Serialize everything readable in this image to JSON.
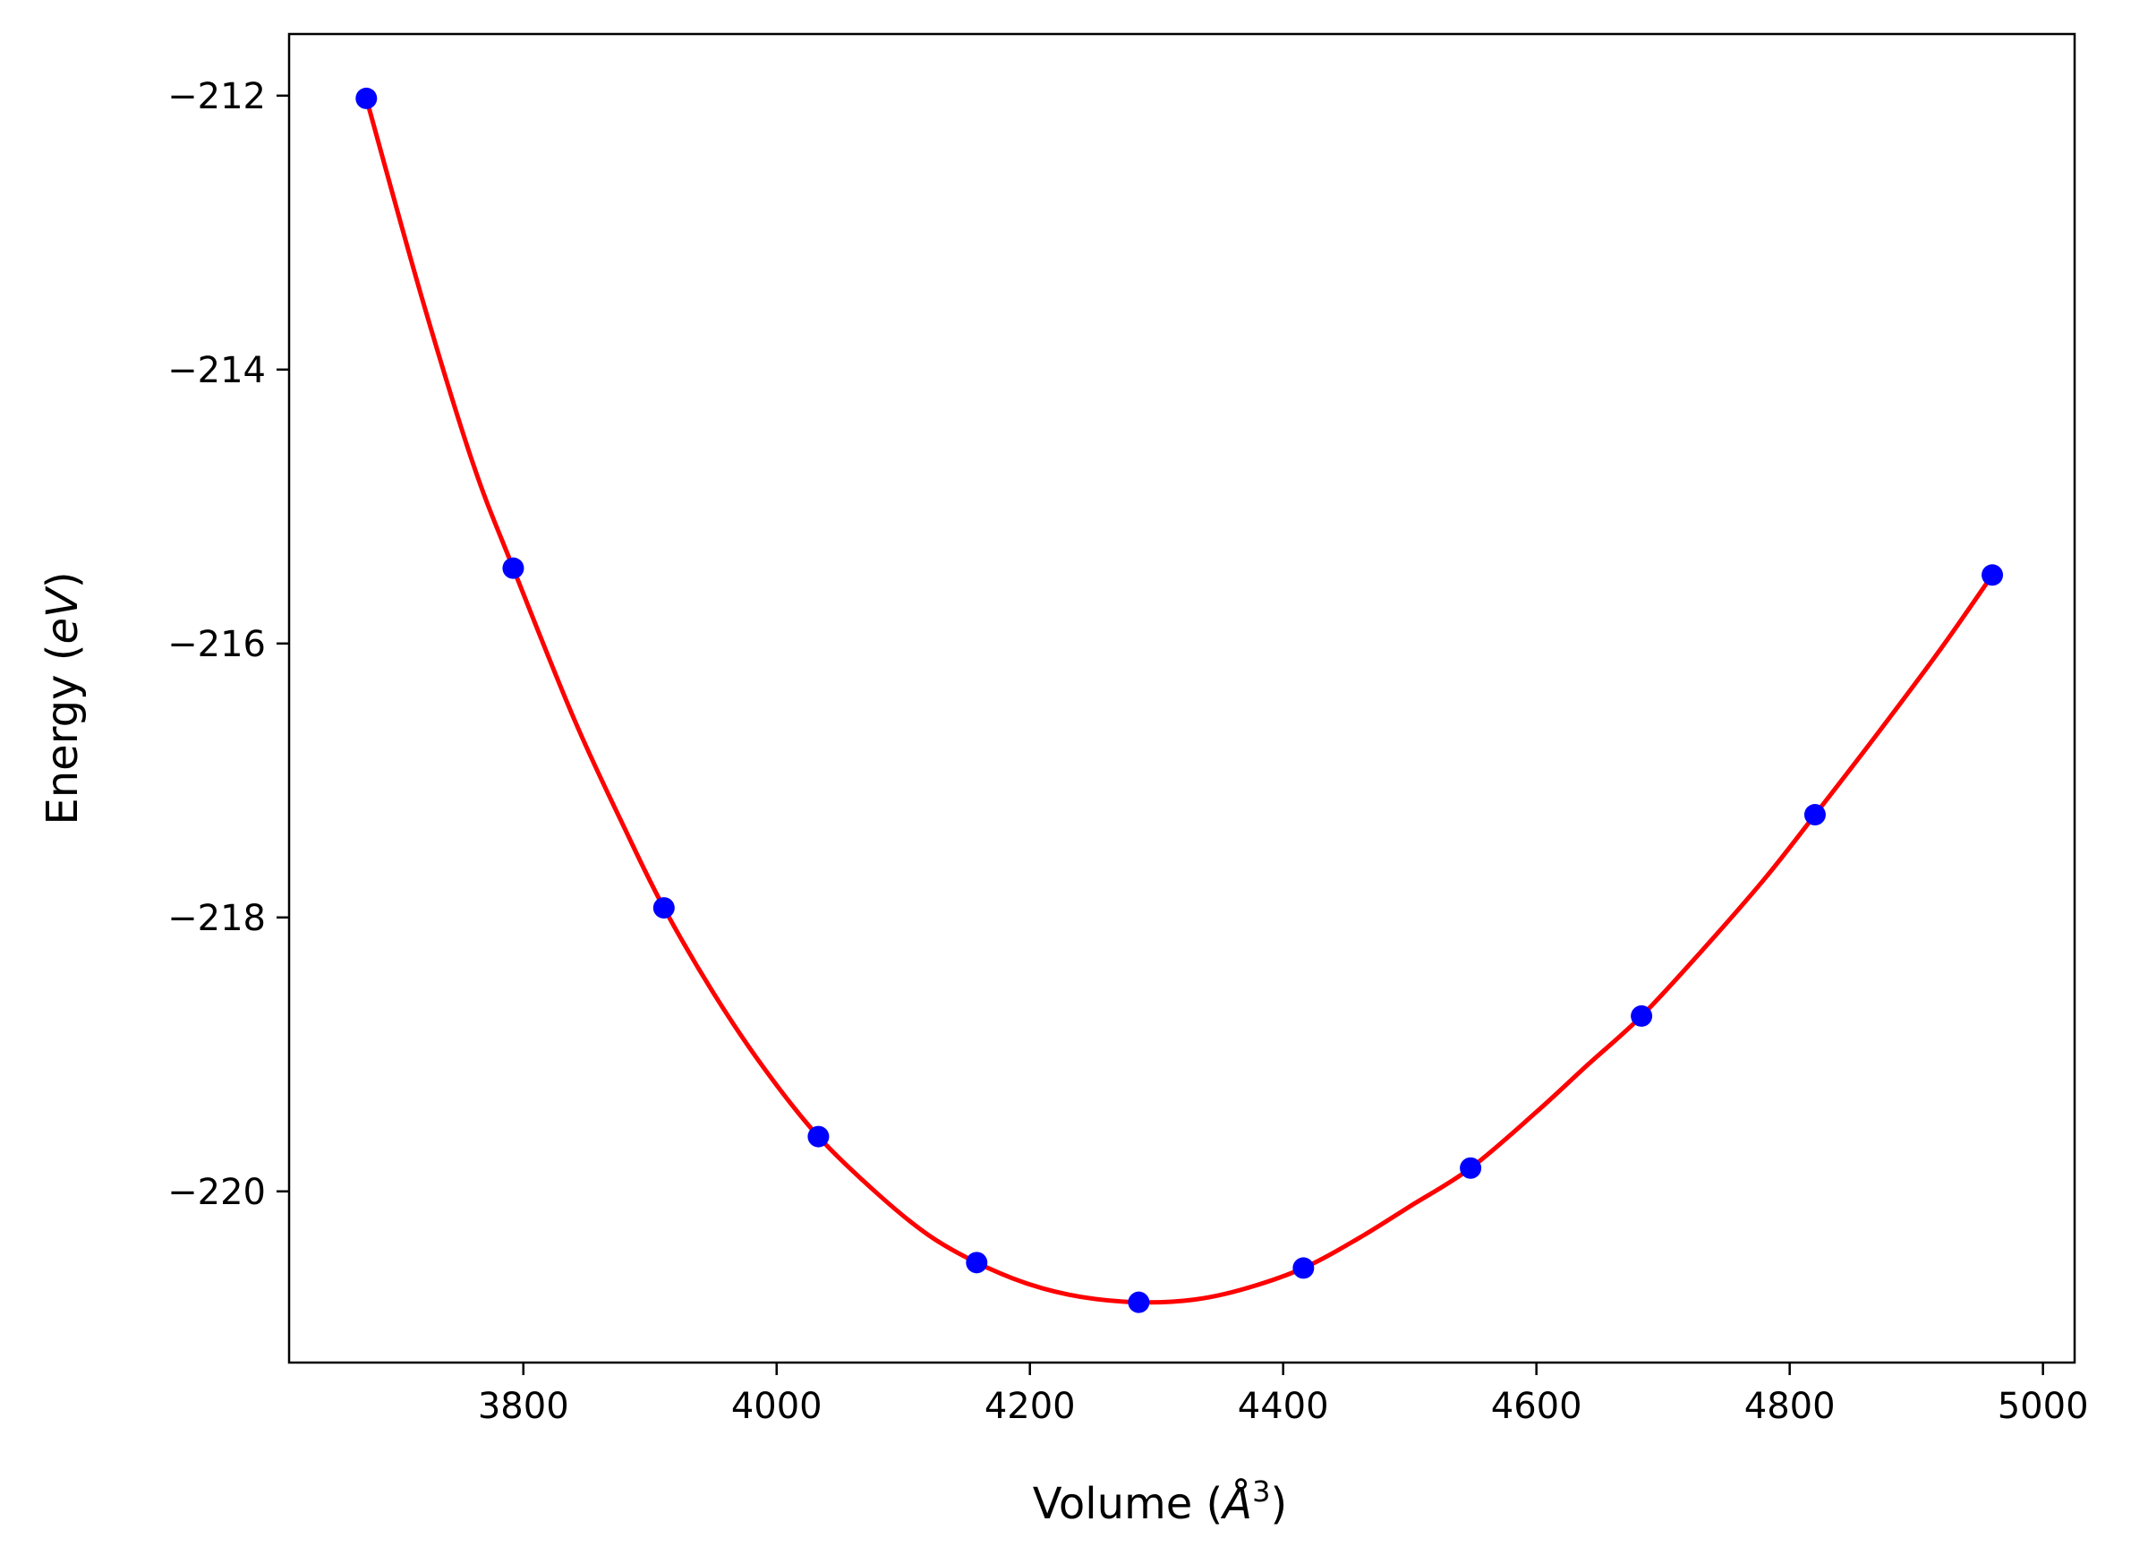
{
  "chart_data": {
    "type": "scatter",
    "title": "",
    "xlabel": "Volume (Å³)",
    "ylabel": "Energy (eV)",
    "xlabel_parts": {
      "text": "Volume (",
      "unit": "Å",
      "exp": "3",
      "close": ")"
    },
    "ylabel_parts": {
      "text": "Energy (",
      "unit": "eV",
      "close": ")"
    },
    "xlim": [
      3615,
      5025
    ],
    "ylim": [
      -221.25,
      -211.55
    ],
    "xticks": [
      3800,
      4000,
      4200,
      4400,
      4600,
      4800,
      5000
    ],
    "xtick_labels": [
      "3800",
      "4000",
      "4200",
      "4400",
      "4600",
      "4800",
      "5000"
    ],
    "yticks": [
      -212,
      -214,
      -216,
      -218,
      -220
    ],
    "ytick_labels": [
      "−212",
      "−214",
      "−216",
      "−218",
      "−220"
    ],
    "grid": false,
    "series": [
      {
        "type": "scatter",
        "color": "#0000ff",
        "x": [
          3676,
          3792,
          3911,
          4033,
          4158,
          4286,
          4416,
          4548,
          4683,
          4820,
          4960
        ],
        "y": [
          -212.02,
          -215.45,
          -217.93,
          -219.6,
          -220.52,
          -220.81,
          -220.56,
          -219.83,
          -218.72,
          -217.25,
          -215.5
        ]
      },
      {
        "type": "line",
        "color": "#ff0000",
        "x": [
          3676,
          3720,
          3760,
          3792,
          3840,
          3880,
          3911,
          3950,
          3990,
          4033,
          4080,
          4120,
          4158,
          4200,
          4240,
          4286,
          4330,
          4370,
          4416,
          4460,
          4500,
          4548,
          4600,
          4640,
          4683,
          4730,
          4780,
          4820,
          4870,
          4920,
          4960
        ],
        "y": [
          -212.02,
          -213.48,
          -214.68,
          -215.45,
          -216.55,
          -217.35,
          -217.93,
          -218.55,
          -219.1,
          -219.6,
          -220.02,
          -220.32,
          -220.52,
          -220.68,
          -220.77,
          -220.81,
          -220.79,
          -220.71,
          -220.56,
          -220.34,
          -220.11,
          -219.83,
          -219.42,
          -219.08,
          -218.72,
          -218.25,
          -217.72,
          -217.25,
          -216.65,
          -216.03,
          -215.5
        ]
      }
    ]
  }
}
